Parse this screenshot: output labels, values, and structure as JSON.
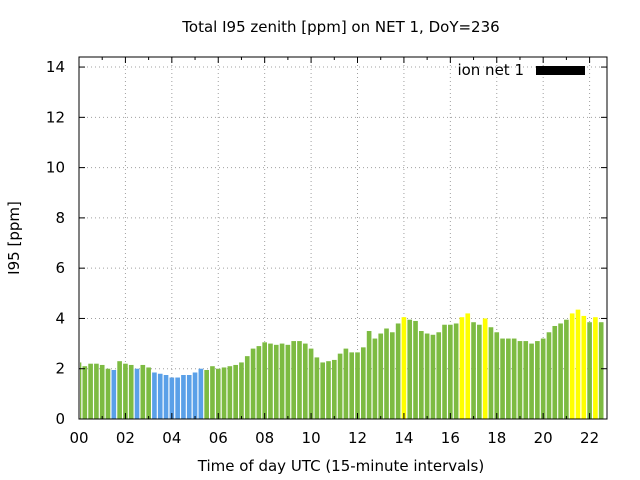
{
  "chart_data": {
    "type": "bar",
    "title": "Total I95 zenith [ppm] on NET 1, DoY=236",
    "xlabel": "Time of day UTC (15-minute intervals)",
    "ylabel": "I95 [ppm]",
    "xlim": [
      0,
      22.75
    ],
    "ylim": [
      0,
      14.4
    ],
    "x_ticks": [
      "00",
      "02",
      "04",
      "06",
      "08",
      "10",
      "12",
      "14",
      "16",
      "18",
      "20",
      "22"
    ],
    "y_ticks": [
      "0",
      "2",
      "4",
      "6",
      "8",
      "10",
      "12",
      "14"
    ],
    "bar_interval_hours": 0.25,
    "grid": true,
    "legend_position": "top-right",
    "colors": {
      "bar_default": "#7dbb42",
      "bar_low": "#5aa0e8",
      "bar_high": "#ffff00",
      "legend_swatch": "#000000",
      "grid": "#a0a0a0"
    },
    "series": [
      {
        "name": "ion net 1",
        "values": [
          2.25,
          2.1,
          2.2,
          2.2,
          2.15,
          2.0,
          1.95,
          2.3,
          2.2,
          2.15,
          2.0,
          2.15,
          2.05,
          1.85,
          1.8,
          1.75,
          1.65,
          1.65,
          1.75,
          1.75,
          1.85,
          2.0,
          1.95,
          2.1,
          2.0,
          2.05,
          2.1,
          2.15,
          2.25,
          2.5,
          2.8,
          2.9,
          3.05,
          3.0,
          2.95,
          3.0,
          2.95,
          3.1,
          3.1,
          3.0,
          2.8,
          2.45,
          2.25,
          2.3,
          2.35,
          2.6,
          2.8,
          2.65,
          2.65,
          2.85,
          3.5,
          3.2,
          3.4,
          3.6,
          3.45,
          3.8,
          4.05,
          3.95,
          3.9,
          3.5,
          3.4,
          3.35,
          3.45,
          3.75,
          3.75,
          3.8,
          4.05,
          4.2,
          3.85,
          3.75,
          4.0,
          3.65,
          3.45,
          3.2,
          3.2,
          3.2,
          3.1,
          3.1,
          3.0,
          3.1,
          3.2,
          3.45,
          3.7,
          3.8,
          3.95,
          4.2,
          4.35,
          4.1,
          3.85,
          4.05,
          3.85
        ],
        "levels": [
          "normal",
          "normal",
          "normal",
          "normal",
          "normal",
          "normal",
          "low",
          "normal",
          "normal",
          "normal",
          "low",
          "normal",
          "normal",
          "low",
          "low",
          "low",
          "low",
          "low",
          "low",
          "low",
          "low",
          "low",
          "normal",
          "normal",
          "normal",
          "normal",
          "normal",
          "normal",
          "normal",
          "normal",
          "normal",
          "normal",
          "normal",
          "normal",
          "normal",
          "normal",
          "normal",
          "normal",
          "normal",
          "normal",
          "normal",
          "normal",
          "normal",
          "normal",
          "normal",
          "normal",
          "normal",
          "normal",
          "normal",
          "normal",
          "normal",
          "normal",
          "normal",
          "normal",
          "normal",
          "normal",
          "high",
          "normal",
          "normal",
          "normal",
          "normal",
          "normal",
          "normal",
          "normal",
          "normal",
          "normal",
          "high",
          "high",
          "normal",
          "normal",
          "high",
          "normal",
          "normal",
          "normal",
          "normal",
          "normal",
          "normal",
          "normal",
          "normal",
          "normal",
          "normal",
          "normal",
          "normal",
          "normal",
          "normal",
          "high",
          "high",
          "high",
          "normal",
          "high",
          "normal"
        ]
      }
    ]
  }
}
